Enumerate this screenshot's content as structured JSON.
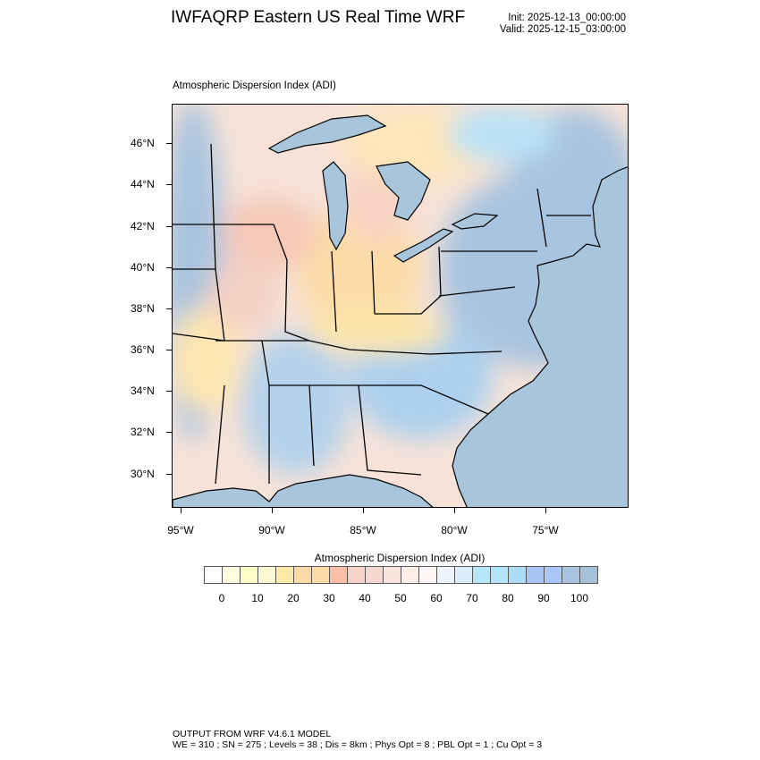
{
  "header": {
    "title": "IWFAQRP Eastern US Real Time WRF",
    "init": "Init: 2025-12-13_00:00:00",
    "valid": "Valid: 2025-12-15_03:00:00"
  },
  "plot": {
    "label": "Atmospheric Dispersion Index   (ADI)",
    "lat_labels": [
      "46°N",
      "44°N",
      "42°N",
      "40°N",
      "38°N",
      "36°N",
      "34°N",
      "32°N",
      "30°N"
    ],
    "lon_labels": [
      "95°W",
      "90°W",
      "85°W",
      "80°W",
      "75°W"
    ],
    "water_color": "#a9c5dc"
  },
  "colorbar": {
    "title": "Atmospheric Dispersion Index  (ADI)",
    "colors": [
      "#ffffff",
      "#fffde0",
      "#ffffc8",
      "#fbf8d2",
      "#fdeaa8",
      "#fddaa8",
      "#fddca8",
      "#fbbfa8",
      "#f6d2c8",
      "#f5d9d0",
      "#f7e4dc",
      "#fdeee8",
      "#fff6f6",
      "#eef4fd",
      "#dceefc",
      "#b6e6fa",
      "#b2e4fa",
      "#acdcf7",
      "#a8c5f5",
      "#a9c8f7",
      "#a8c4e0",
      "#a6c2d8"
    ],
    "labels": [
      "0",
      "10",
      "20",
      "30",
      "40",
      "50",
      "60",
      "70",
      "80",
      "90",
      "100"
    ]
  },
  "footer": {
    "line1": "OUTPUT FROM WRF V4.6.1 MODEL",
    "line2": "WE = 310 ; SN = 275 ; Levels = 38 ; Dis = 8km ; Phys Opt = 8 ; PBL Opt = 1 ; Cu Opt = 3"
  }
}
